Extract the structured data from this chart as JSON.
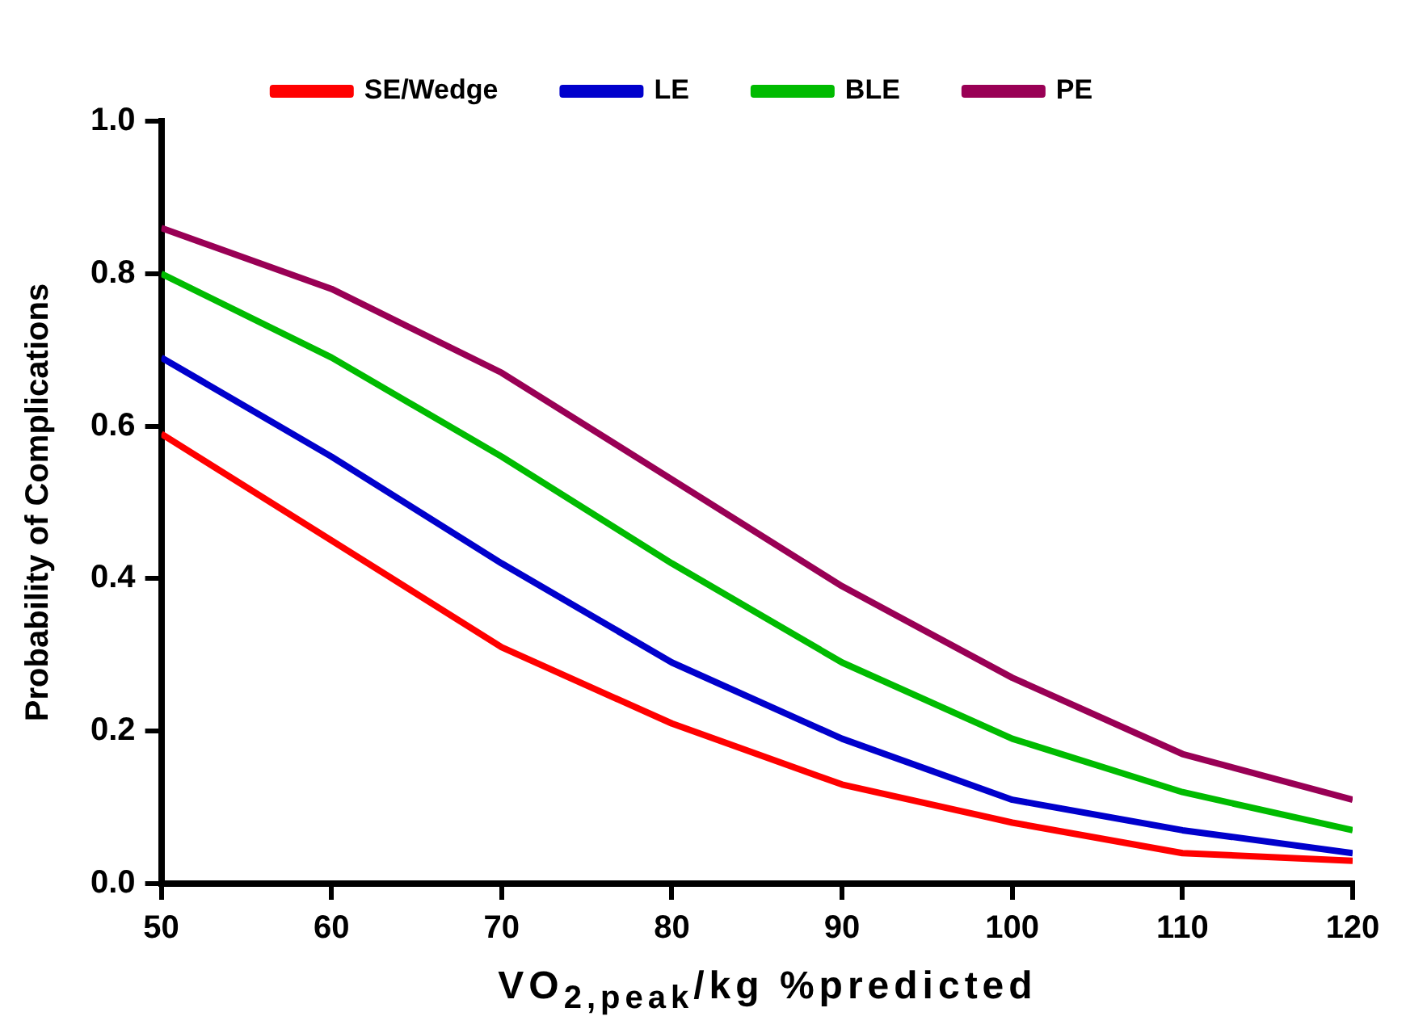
{
  "chart_data": {
    "type": "line",
    "xlabel": "VO$_{2,peak}$/kg %predicted",
    "ylabel": "Probability of Complications",
    "x": [
      50,
      60,
      70,
      80,
      90,
      100,
      110,
      120
    ],
    "series": [
      {
        "name": "SE/Wedge",
        "color": "#ff0000",
        "values": [
          0.59,
          0.45,
          0.31,
          0.21,
          0.13,
          0.08,
          0.04,
          0.03
        ]
      },
      {
        "name": "LE",
        "color": "#0000cc",
        "values": [
          0.69,
          0.56,
          0.42,
          0.29,
          0.19,
          0.11,
          0.07,
          0.04
        ]
      },
      {
        "name": "BLE",
        "color": "#00bb00",
        "values": [
          0.8,
          0.69,
          0.56,
          0.42,
          0.29,
          0.19,
          0.12,
          0.07
        ]
      },
      {
        "name": "PE",
        "color": "#990055",
        "values": [
          0.86,
          0.78,
          0.67,
          0.53,
          0.39,
          0.27,
          0.17,
          0.11
        ]
      }
    ],
    "xlim": [
      50,
      120
    ],
    "xticks": [
      50,
      60,
      70,
      80,
      90,
      100,
      110,
      120
    ],
    "ylim": [
      0,
      1
    ],
    "yticks": [
      {
        "value": 0,
        "label": "0.0"
      },
      {
        "value": 0.2,
        "label": "0.2"
      },
      {
        "value": 0.4,
        "label": "0.4"
      },
      {
        "value": 0.6,
        "label": "0.6"
      },
      {
        "value": 0.8,
        "label": "0.8"
      },
      {
        "value": 1,
        "label": "1.0"
      }
    ],
    "grid": false,
    "legend": "top",
    "marker": "none",
    "line_style": "solid"
  }
}
